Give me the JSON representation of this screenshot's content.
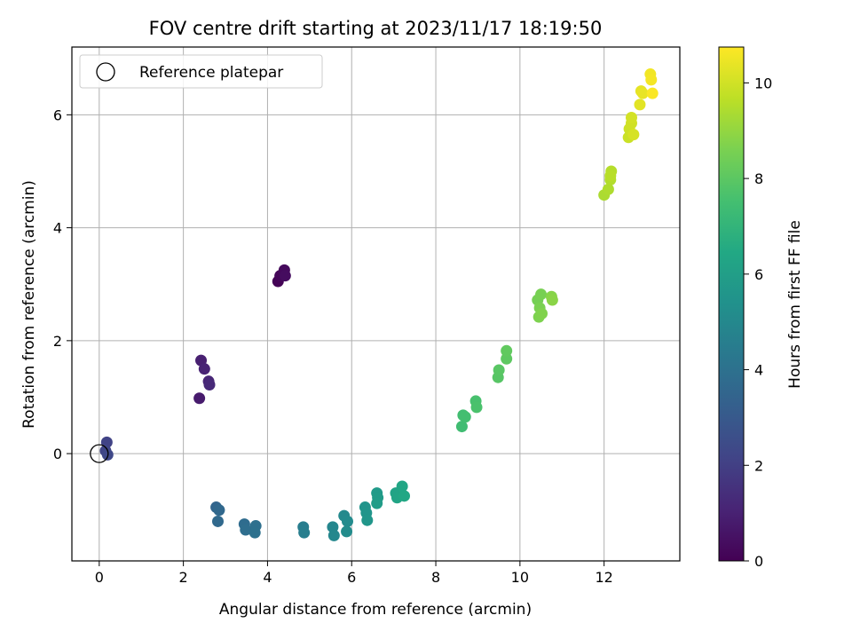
{
  "chart_data": {
    "type": "scatter",
    "title": "FOV centre drift starting at 2023/11/17 18:19:50",
    "xlabel": "Angular distance from reference (arcmin)",
    "ylabel": "Rotation from reference (arcmin)",
    "xlim": [
      -0.65,
      13.8
    ],
    "ylim": [
      -1.9,
      7.2
    ],
    "xticks": [
      "0",
      "2",
      "4",
      "6",
      "8",
      "10",
      "12"
    ],
    "yticks": [
      "0",
      "2",
      "4",
      "6"
    ],
    "grid": true,
    "legend": {
      "position": "top-left",
      "label": "Reference platepar"
    },
    "reference_point": {
      "x": 0,
      "y": 0
    },
    "colorbar": {
      "label": "Hours from first FF file",
      "min": 0,
      "max": 10.75,
      "ticks": [
        "0",
        "2",
        "4",
        "6",
        "8",
        "10"
      ],
      "colormap": "viridis"
    },
    "points": [
      {
        "x": 4.25,
        "y": 3.05,
        "c": 0.05
      },
      {
        "x": 4.3,
        "y": 3.15,
        "c": 0.15
      },
      {
        "x": 4.4,
        "y": 3.25,
        "c": 0.25
      },
      {
        "x": 4.42,
        "y": 3.15,
        "c": 0.35
      },
      {
        "x": 2.38,
        "y": 0.98,
        "c": 0.8
      },
      {
        "x": 2.42,
        "y": 1.65,
        "c": 0.95
      },
      {
        "x": 2.5,
        "y": 1.5,
        "c": 1.05
      },
      {
        "x": 2.6,
        "y": 1.28,
        "c": 1.15
      },
      {
        "x": 2.62,
        "y": 1.22,
        "c": 1.25
      },
      {
        "x": 0.18,
        "y": 0.2,
        "c": 2.1
      },
      {
        "x": 0.15,
        "y": 0.05,
        "c": 2.2
      },
      {
        "x": 0.2,
        "y": -0.02,
        "c": 2.3
      },
      {
        "x": 2.78,
        "y": -0.95,
        "c": 3.5
      },
      {
        "x": 2.85,
        "y": -1.0,
        "c": 3.6
      },
      {
        "x": 2.82,
        "y": -1.2,
        "c": 3.65
      },
      {
        "x": 3.45,
        "y": -1.25,
        "c": 3.8
      },
      {
        "x": 3.48,
        "y": -1.35,
        "c": 3.85
      },
      {
        "x": 3.72,
        "y": -1.28,
        "c": 3.95
      },
      {
        "x": 3.7,
        "y": -1.4,
        "c": 4.0
      },
      {
        "x": 4.85,
        "y": -1.3,
        "c": 4.5
      },
      {
        "x": 4.87,
        "y": -1.4,
        "c": 4.55
      },
      {
        "x": 5.55,
        "y": -1.3,
        "c": 4.9
      },
      {
        "x": 5.58,
        "y": -1.45,
        "c": 4.95
      },
      {
        "x": 5.82,
        "y": -1.1,
        "c": 5.05
      },
      {
        "x": 5.9,
        "y": -1.2,
        "c": 5.1
      },
      {
        "x": 5.88,
        "y": -1.38,
        "c": 5.15
      },
      {
        "x": 6.32,
        "y": -0.95,
        "c": 5.5
      },
      {
        "x": 6.35,
        "y": -1.05,
        "c": 5.55
      },
      {
        "x": 6.37,
        "y": -1.18,
        "c": 5.6
      },
      {
        "x": 6.6,
        "y": -0.7,
        "c": 5.8
      },
      {
        "x": 6.62,
        "y": -0.78,
        "c": 5.85
      },
      {
        "x": 6.6,
        "y": -0.88,
        "c": 5.9
      },
      {
        "x": 7.05,
        "y": -0.7,
        "c": 6.2
      },
      {
        "x": 7.08,
        "y": -0.78,
        "c": 6.25
      },
      {
        "x": 7.2,
        "y": -0.58,
        "c": 6.35
      },
      {
        "x": 7.25,
        "y": -0.75,
        "c": 6.4
      },
      {
        "x": 8.62,
        "y": 0.48,
        "c": 7.4
      },
      {
        "x": 8.65,
        "y": 0.68,
        "c": 7.45
      },
      {
        "x": 8.7,
        "y": 0.65,
        "c": 7.5
      },
      {
        "x": 8.95,
        "y": 0.93,
        "c": 7.6
      },
      {
        "x": 8.97,
        "y": 0.82,
        "c": 7.65
      },
      {
        "x": 9.48,
        "y": 1.35,
        "c": 7.9
      },
      {
        "x": 9.5,
        "y": 1.48,
        "c": 7.95
      },
      {
        "x": 9.68,
        "y": 1.68,
        "c": 8.05
      },
      {
        "x": 9.68,
        "y": 1.82,
        "c": 8.1
      },
      {
        "x": 10.42,
        "y": 2.72,
        "c": 8.5
      },
      {
        "x": 10.5,
        "y": 2.82,
        "c": 8.55
      },
      {
        "x": 10.47,
        "y": 2.58,
        "c": 8.6
      },
      {
        "x": 10.45,
        "y": 2.42,
        "c": 8.65
      },
      {
        "x": 10.52,
        "y": 2.48,
        "c": 8.7
      },
      {
        "x": 10.75,
        "y": 2.78,
        "c": 8.8
      },
      {
        "x": 10.77,
        "y": 2.72,
        "c": 8.85
      },
      {
        "x": 12.0,
        "y": 4.58,
        "c": 9.4
      },
      {
        "x": 12.1,
        "y": 4.68,
        "c": 9.45
      },
      {
        "x": 12.15,
        "y": 4.85,
        "c": 9.5
      },
      {
        "x": 12.17,
        "y": 5.0,
        "c": 9.55
      },
      {
        "x": 12.15,
        "y": 4.92,
        "c": 9.6
      },
      {
        "x": 12.58,
        "y": 5.6,
        "c": 9.9
      },
      {
        "x": 12.6,
        "y": 5.75,
        "c": 9.95
      },
      {
        "x": 12.65,
        "y": 5.85,
        "c": 10.0
      },
      {
        "x": 12.65,
        "y": 5.95,
        "c": 10.05
      },
      {
        "x": 12.7,
        "y": 5.65,
        "c": 10.1
      },
      {
        "x": 12.85,
        "y": 6.18,
        "c": 10.3
      },
      {
        "x": 12.88,
        "y": 6.42,
        "c": 10.35
      },
      {
        "x": 12.92,
        "y": 6.38,
        "c": 10.4
      },
      {
        "x": 13.1,
        "y": 6.72,
        "c": 10.55
      },
      {
        "x": 13.12,
        "y": 6.62,
        "c": 10.6
      },
      {
        "x": 13.15,
        "y": 6.38,
        "c": 10.7
      }
    ]
  }
}
